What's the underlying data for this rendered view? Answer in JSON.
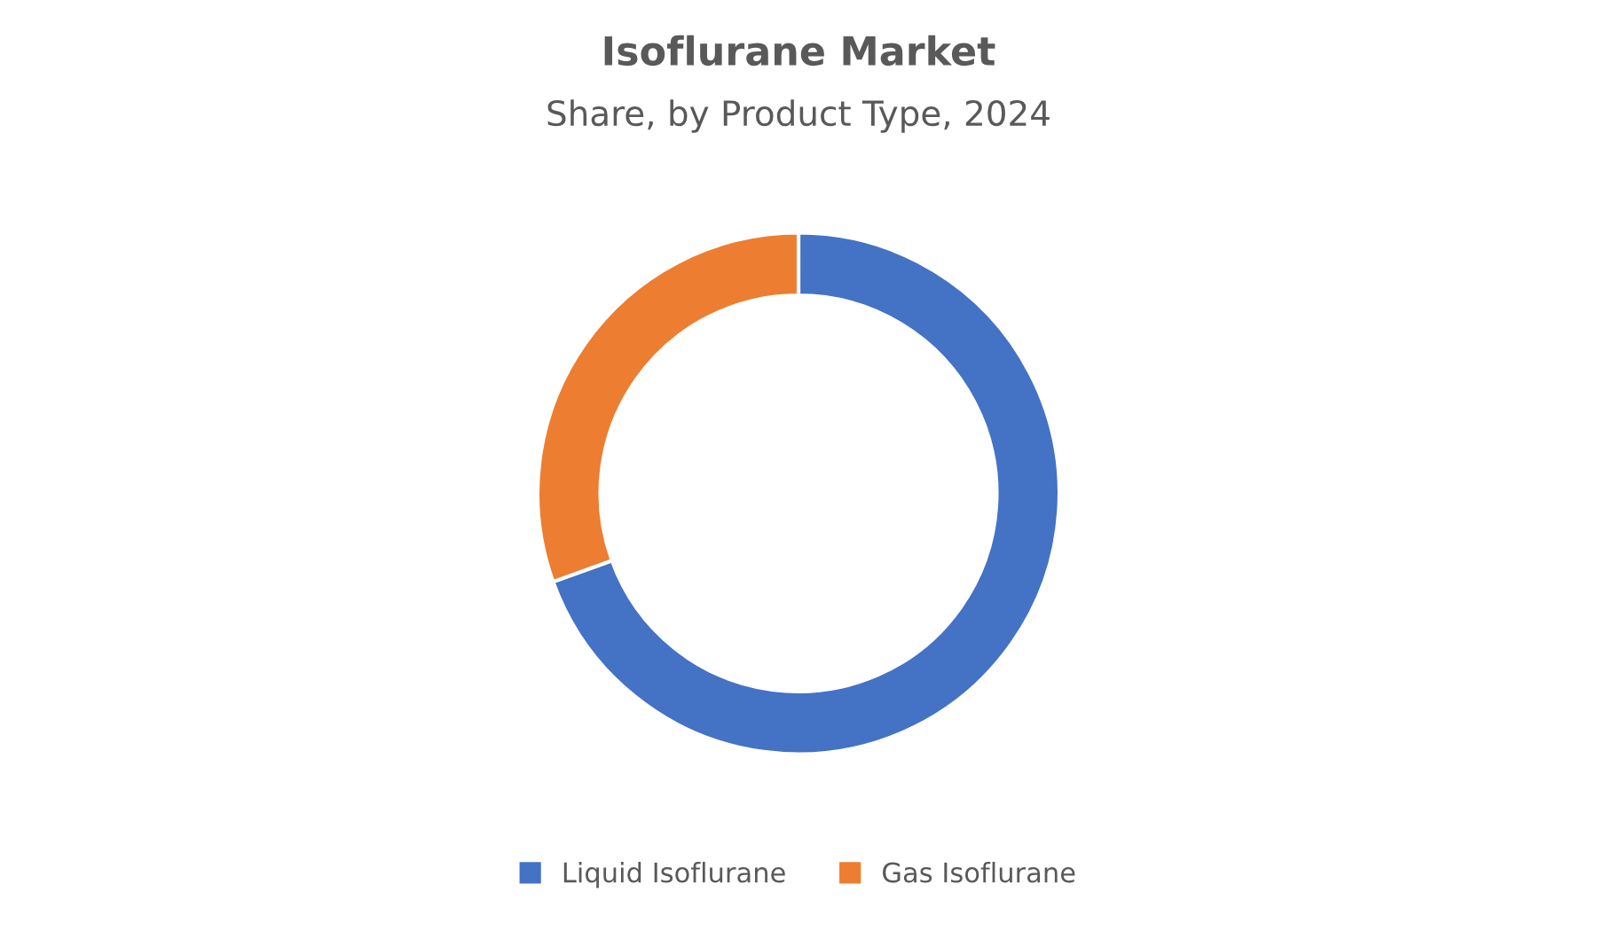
{
  "chart_data": {
    "type": "donut",
    "title": "Isoflurane Market",
    "subtitle": "Share, by Product Type, 2024",
    "categories": [
      "Liquid Isoflurane",
      "Gas Isoflurane"
    ],
    "values": [
      69.5,
      30.5
    ],
    "colors": [
      "#4472c4",
      "#ed7d31"
    ],
    "legend": "bottom"
  }
}
